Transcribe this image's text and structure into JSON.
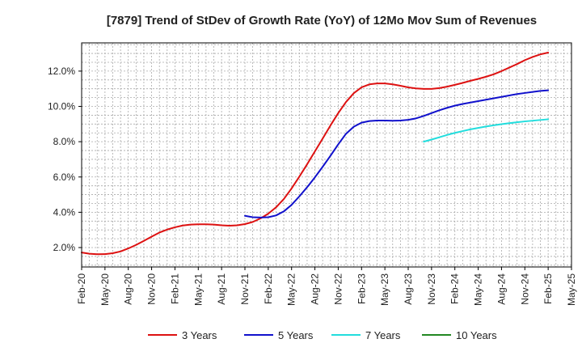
{
  "chart_data": {
    "type": "line",
    "title": "[7879]  Trend of StDev of Growth Rate (YoY) of 12Mo Mov Sum of Revenues",
    "xlabel": "",
    "ylabel": "",
    "ylim": [
      0.9,
      13.6
    ],
    "y_ticks": [
      2.0,
      4.0,
      6.0,
      8.0,
      10.0,
      12.0
    ],
    "y_tick_labels": [
      "2.0%",
      "4.0%",
      "6.0%",
      "8.0%",
      "10.0%",
      "12.0%"
    ],
    "x_start": "Feb-20",
    "x_range_months": [
      0,
      63
    ],
    "x_tick_months": [
      0,
      3,
      6,
      9,
      12,
      15,
      18,
      21,
      24,
      27,
      30,
      33,
      36,
      39,
      42,
      45,
      48,
      51,
      54,
      57,
      60,
      63
    ],
    "x_tick_labels": [
      "Feb-20",
      "May-20",
      "Aug-20",
      "Nov-20",
      "Feb-21",
      "May-21",
      "Aug-21",
      "Nov-21",
      "Feb-22",
      "May-22",
      "Aug-22",
      "Nov-22",
      "Feb-23",
      "May-23",
      "Aug-23",
      "Nov-23",
      "Feb-24",
      "May-24",
      "Aug-24",
      "Nov-24",
      "Feb-25",
      "May-25"
    ],
    "grid": true,
    "legend_position": "bottom",
    "series": [
      {
        "name": "3 Years",
        "color": "#dd1111",
        "x": [
          0,
          1,
          2,
          3,
          4,
          5,
          6,
          7,
          8,
          9,
          10,
          11,
          12,
          13,
          14,
          15,
          16,
          17,
          18,
          19,
          20,
          21,
          22,
          23,
          24,
          25,
          26,
          27,
          28,
          29,
          30,
          31,
          32,
          33,
          34,
          35,
          36,
          37,
          38,
          39,
          40,
          41,
          42,
          43,
          44,
          45,
          46,
          47,
          48,
          49,
          50,
          51,
          52,
          53,
          54,
          55,
          56,
          57,
          58,
          59,
          60
        ],
        "values": [
          1.72,
          1.65,
          1.62,
          1.63,
          1.68,
          1.78,
          1.95,
          2.15,
          2.38,
          2.62,
          2.85,
          3.02,
          3.15,
          3.25,
          3.3,
          3.32,
          3.32,
          3.3,
          3.26,
          3.24,
          3.26,
          3.33,
          3.45,
          3.65,
          3.92,
          4.28,
          4.75,
          5.35,
          6.02,
          6.72,
          7.45,
          8.18,
          8.92,
          9.62,
          10.25,
          10.75,
          11.08,
          11.25,
          11.3,
          11.3,
          11.25,
          11.17,
          11.08,
          11.02,
          10.99,
          10.99,
          11.04,
          11.12,
          11.22,
          11.33,
          11.45,
          11.56,
          11.68,
          11.82,
          12.0,
          12.2,
          12.4,
          12.62,
          12.8,
          12.95,
          13.05
        ]
      },
      {
        "name": "5 Years",
        "color": "#1111cc",
        "x": [
          21,
          22,
          23,
          24,
          25,
          26,
          27,
          28,
          29,
          30,
          31,
          32,
          33,
          34,
          35,
          36,
          37,
          38,
          39,
          40,
          41,
          42,
          43,
          44,
          45,
          46,
          47,
          48,
          49,
          50,
          51,
          52,
          53,
          54,
          55,
          56,
          57,
          58,
          59,
          60
        ],
        "values": [
          3.8,
          3.72,
          3.7,
          3.72,
          3.82,
          4.05,
          4.42,
          4.9,
          5.42,
          5.98,
          6.58,
          7.2,
          7.85,
          8.45,
          8.85,
          9.08,
          9.17,
          9.2,
          9.2,
          9.19,
          9.2,
          9.24,
          9.32,
          9.46,
          9.62,
          9.78,
          9.92,
          10.04,
          10.14,
          10.22,
          10.3,
          10.38,
          10.46,
          10.54,
          10.62,
          10.7,
          10.76,
          10.82,
          10.88,
          10.91
        ]
      },
      {
        "name": "7 Years",
        "color": "#22dddd",
        "x": [
          44,
          45,
          46,
          47,
          48,
          49,
          50,
          51,
          52,
          53,
          54,
          55,
          56,
          57,
          58,
          59,
          60
        ],
        "values": [
          8.0,
          8.12,
          8.25,
          8.38,
          8.5,
          8.6,
          8.7,
          8.78,
          8.86,
          8.93,
          8.99,
          9.05,
          9.1,
          9.15,
          9.19,
          9.23,
          9.27
        ]
      },
      {
        "name": "10 Years",
        "color": "#228822",
        "x": [],
        "values": []
      }
    ]
  }
}
